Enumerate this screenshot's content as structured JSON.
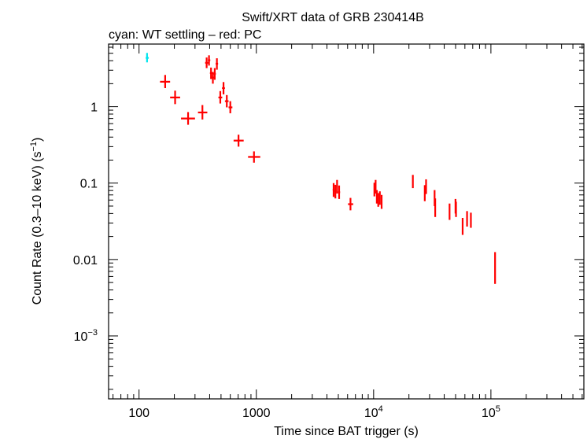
{
  "chart_data": {
    "type": "scatter",
    "title": "Swift/XRT data of GRB 230414B",
    "subtitle": "cyan: WT settling – red: PC",
    "xlabel": "Time since BAT trigger (s)",
    "ylabel": "Count Rate (0.3–10 keV) (s",
    "ylabel_sup": "−1",
    "ylabel_tail": ")",
    "xscale": "log",
    "yscale": "log",
    "xlim": [
      55,
      620000
    ],
    "ylim": [
      0.00015,
      6.6
    ],
    "x_ticks": [
      {
        "value": 100,
        "label": "100"
      },
      {
        "value": 1000,
        "label": "1000"
      },
      {
        "value": 10000,
        "label": "10",
        "sup": "4"
      },
      {
        "value": 100000,
        "label": "10",
        "sup": "5"
      }
    ],
    "y_ticks": [
      {
        "value": 1,
        "label": "1"
      },
      {
        "value": 0.1,
        "label": "0.1"
      },
      {
        "value": 0.01,
        "label": "0.01"
      },
      {
        "value": 0.001,
        "label": "10",
        "sup": "−3"
      }
    ],
    "series": [
      {
        "name": "WT settling",
        "color": "#00e5ee",
        "points": [
          {
            "x": 117,
            "xlo": 114,
            "xhi": 121,
            "y": 4.35,
            "ylo": 3.8,
            "yhi": 5.05
          }
        ]
      },
      {
        "name": "PC",
        "color": "#ff0000",
        "points": [
          {
            "x": 167,
            "xlo": 151,
            "xhi": 184,
            "y": 2.12,
            "ylo": 1.75,
            "yhi": 2.6
          },
          {
            "x": 203,
            "xlo": 184,
            "xhi": 224,
            "y": 1.32,
            "ylo": 1.08,
            "yhi": 1.62
          },
          {
            "x": 262,
            "xlo": 228,
            "xhi": 300,
            "y": 0.7,
            "ylo": 0.58,
            "yhi": 0.85
          },
          {
            "x": 347,
            "xlo": 318,
            "xhi": 382,
            "y": 0.84,
            "ylo": 0.68,
            "yhi": 1.05
          },
          {
            "x": 377,
            "xlo": 366,
            "xhi": 388,
            "y": 3.75,
            "ylo": 3.2,
            "yhi": 4.4
          },
          {
            "x": 395,
            "xlo": 386,
            "xhi": 405,
            "y": 4.05,
            "ylo": 3.45,
            "yhi": 4.7
          },
          {
            "x": 411,
            "xlo": 402,
            "xhi": 420,
            "y": 2.75,
            "ylo": 2.3,
            "yhi": 3.25
          },
          {
            "x": 426,
            "xlo": 416,
            "xhi": 436,
            "y": 2.4,
            "ylo": 2.0,
            "yhi": 2.85
          },
          {
            "x": 442,
            "xlo": 433,
            "xhi": 452,
            "y": 2.7,
            "ylo": 2.25,
            "yhi": 3.2
          },
          {
            "x": 461,
            "xlo": 450,
            "xhi": 472,
            "y": 3.65,
            "ylo": 3.05,
            "yhi": 4.3
          },
          {
            "x": 493,
            "xlo": 475,
            "xhi": 512,
            "y": 1.32,
            "ylo": 1.1,
            "yhi": 1.6
          },
          {
            "x": 525,
            "xlo": 510,
            "xhi": 540,
            "y": 1.75,
            "ylo": 1.45,
            "yhi": 2.1
          },
          {
            "x": 560,
            "xlo": 540,
            "xhi": 580,
            "y": 1.18,
            "ylo": 0.98,
            "yhi": 1.42
          },
          {
            "x": 600,
            "xlo": 580,
            "xhi": 625,
            "y": 0.98,
            "ylo": 0.82,
            "yhi": 1.18
          },
          {
            "x": 705,
            "xlo": 640,
            "xhi": 780,
            "y": 0.36,
            "ylo": 0.3,
            "yhi": 0.43
          },
          {
            "x": 955,
            "xlo": 850,
            "xhi": 1080,
            "y": 0.22,
            "ylo": 0.185,
            "yhi": 0.26
          },
          {
            "x": 4560,
            "xlo": 4480,
            "xhi": 4640,
            "y": 0.082,
            "ylo": 0.066,
            "yhi": 0.1
          },
          {
            "x": 4720,
            "xlo": 4650,
            "xhi": 4790,
            "y": 0.078,
            "ylo": 0.063,
            "yhi": 0.095
          },
          {
            "x": 4880,
            "xlo": 4800,
            "xhi": 4960,
            "y": 0.09,
            "ylo": 0.073,
            "yhi": 0.11
          },
          {
            "x": 5080,
            "xlo": 4980,
            "xhi": 5180,
            "y": 0.076,
            "ylo": 0.062,
            "yhi": 0.093
          },
          {
            "x": 6350,
            "xlo": 6050,
            "xhi": 6700,
            "y": 0.053,
            "ylo": 0.044,
            "yhi": 0.064
          },
          {
            "x": 10150,
            "xlo": 10050,
            "xhi": 10250,
            "y": 0.082,
            "ylo": 0.067,
            "yhi": 0.101
          },
          {
            "x": 10400,
            "xlo": 10300,
            "xhi": 10500,
            "y": 0.09,
            "ylo": 0.073,
            "yhi": 0.11
          },
          {
            "x": 10650,
            "xlo": 10550,
            "xhi": 10750,
            "y": 0.066,
            "ylo": 0.054,
            "yhi": 0.081
          },
          {
            "x": 10950,
            "xlo": 10850,
            "xhi": 11050,
            "y": 0.06,
            "ylo": 0.049,
            "yhi": 0.074
          },
          {
            "x": 11300,
            "xlo": 11150,
            "xhi": 11450,
            "y": 0.064,
            "ylo": 0.052,
            "yhi": 0.078
          },
          {
            "x": 11700,
            "xlo": 11550,
            "xhi": 11850,
            "y": 0.057,
            "ylo": 0.046,
            "yhi": 0.07
          },
          {
            "x": 21600,
            "xlo": 21400,
            "xhi": 21800,
            "y": 0.105,
            "ylo": 0.086,
            "yhi": 0.128
          },
          {
            "x": 27300,
            "xlo": 27100,
            "xhi": 27500,
            "y": 0.074,
            "ylo": 0.058,
            "yhi": 0.094
          },
          {
            "x": 28000,
            "xlo": 27800,
            "xhi": 28200,
            "y": 0.09,
            "ylo": 0.072,
            "yhi": 0.112
          },
          {
            "x": 33100,
            "xlo": 32900,
            "xhi": 33300,
            "y": 0.064,
            "ylo": 0.05,
            "yhi": 0.081
          },
          {
            "x": 33500,
            "xlo": 33300,
            "xhi": 33700,
            "y": 0.048,
            "ylo": 0.036,
            "yhi": 0.063
          },
          {
            "x": 44400,
            "xlo": 44100,
            "xhi": 44700,
            "y": 0.042,
            "ylo": 0.033,
            "yhi": 0.054
          },
          {
            "x": 49900,
            "xlo": 49600,
            "xhi": 50200,
            "y": 0.05,
            "ylo": 0.04,
            "yhi": 0.062
          },
          {
            "x": 50400,
            "xlo": 50100,
            "xhi": 50700,
            "y": 0.045,
            "ylo": 0.036,
            "yhi": 0.057
          },
          {
            "x": 57400,
            "xlo": 56900,
            "xhi": 57900,
            "y": 0.027,
            "ylo": 0.021,
            "yhi": 0.035
          },
          {
            "x": 62600,
            "xlo": 62000,
            "xhi": 63200,
            "y": 0.034,
            "ylo": 0.027,
            "yhi": 0.043
          },
          {
            "x": 67500,
            "xlo": 66800,
            "xhi": 68200,
            "y": 0.033,
            "ylo": 0.026,
            "yhi": 0.041
          },
          {
            "x": 108500,
            "xlo": 107500,
            "xhi": 109500,
            "y": 0.0078,
            "ylo": 0.0048,
            "yhi": 0.0125
          }
        ]
      }
    ]
  }
}
